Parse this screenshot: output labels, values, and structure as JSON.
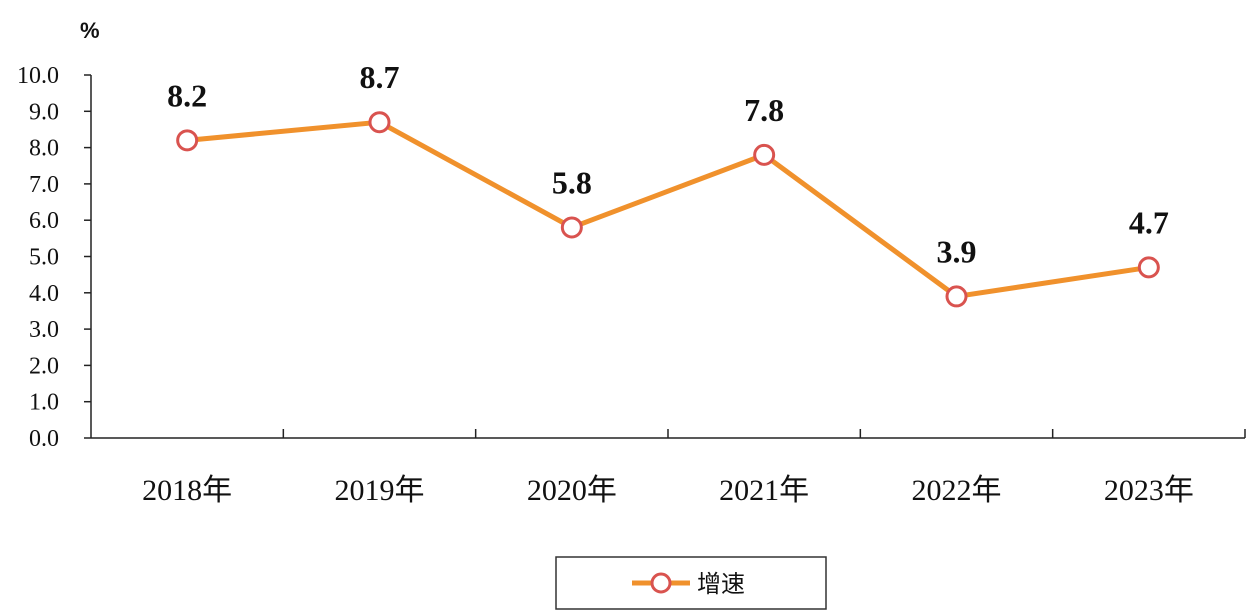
{
  "chart_data": {
    "type": "line",
    "title": "",
    "xlabel": "",
    "ylabel": "%",
    "categories": [
      "2018年",
      "2019年",
      "2020年",
      "2021年",
      "2022年",
      "2023年"
    ],
    "series": [
      {
        "name": "增速",
        "values": [
          8.2,
          8.7,
          5.8,
          7.8,
          3.9,
          4.7
        ],
        "color": "#F0912C",
        "marker_edge_color": "#D9534F",
        "marker_fill": "#ffffff"
      }
    ],
    "data_labels": [
      "8.2",
      "8.7",
      "5.8",
      "7.8",
      "3.9",
      "4.7"
    ],
    "y_ticks": [
      "0.0",
      "1.0",
      "2.0",
      "3.0",
      "4.0",
      "5.0",
      "6.0",
      "7.0",
      "8.0",
      "9.0",
      "10.0"
    ],
    "ylim": [
      0,
      10
    ],
    "grid": false,
    "legend_position": "bottom-center"
  }
}
